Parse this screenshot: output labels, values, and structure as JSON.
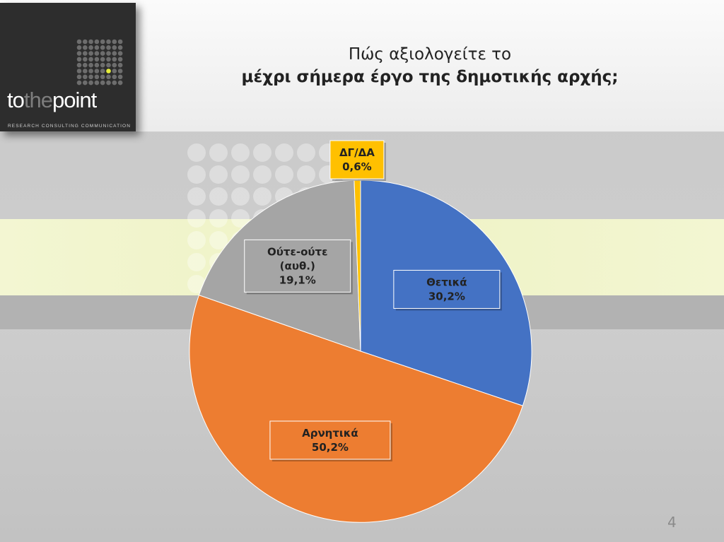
{
  "header": {
    "title_line1": "Πώς αξιολογείτε το",
    "title_line2": "μέχρι σήμερα έργο της δημοτικής αρχής;",
    "background_color": "#f4f4f4"
  },
  "logo": {
    "text_part1": "to",
    "text_part2": "the",
    "text_part3": "point",
    "subtitle": "RESEARCH  CONSULTING  COMMUNICATION",
    "accent_color": "#e6ee3c"
  },
  "page_number": "4",
  "chart_data": {
    "type": "pie",
    "title": "Πώς αξιολογείτε το μέχρι σήμερα έργο της δημοτικής αρχής;",
    "start_angle_deg": 0,
    "direction": "clockwise",
    "slices": [
      {
        "label": "Θετικά",
        "value": 30.2,
        "value_label": "30,2%",
        "color": "#4472c4"
      },
      {
        "label": "Αρνητικά",
        "value": 50.2,
        "value_label": "50,2%",
        "color": "#ed7d31"
      },
      {
        "label": "Ούτε-ούτε (αυθ.)",
        "label_lines": [
          "Ούτε-ούτε",
          "(αυθ.)"
        ],
        "value": 19.1,
        "value_label": "19,1%",
        "color": "#a5a5a5"
      },
      {
        "label": "ΔΓ/ΔΑ",
        "value": 0.6,
        "value_label": "0,6%",
        "color": "#ffc000"
      }
    ]
  }
}
